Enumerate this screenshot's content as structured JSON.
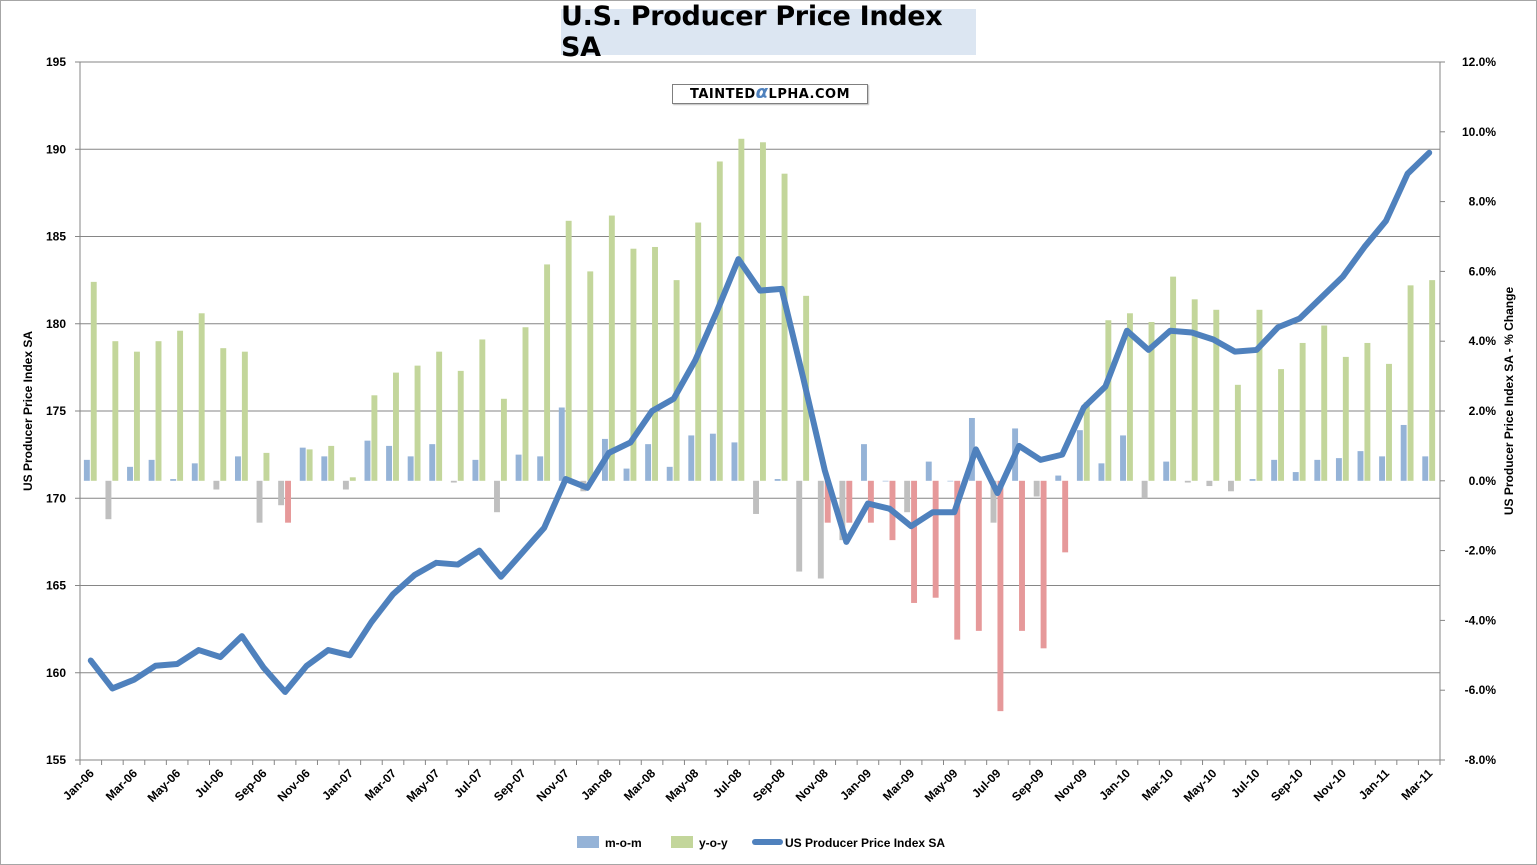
{
  "chart_data": {
    "type": "bar",
    "title": "U.S. Producer Price Index SA",
    "watermark": {
      "prefix": "TAINTED",
      "alpha": "α",
      "suffix": "LPHA.COM"
    },
    "categories": [
      "Jan-06",
      "Feb-06",
      "Mar-06",
      "Apr-06",
      "May-06",
      "Jun-06",
      "Jul-06",
      "Aug-06",
      "Sep-06",
      "Oct-06",
      "Nov-06",
      "Dec-06",
      "Jan-07",
      "Feb-07",
      "Mar-07",
      "Apr-07",
      "May-07",
      "Jun-07",
      "Jul-07",
      "Aug-07",
      "Sep-07",
      "Oct-07",
      "Nov-07",
      "Dec-07",
      "Jan-08",
      "Feb-08",
      "Mar-08",
      "Apr-08",
      "May-08",
      "Jun-08",
      "Jul-08",
      "Aug-08",
      "Sep-08",
      "Oct-08",
      "Nov-08",
      "Dec-08",
      "Jan-09",
      "Feb-09",
      "Mar-09",
      "Apr-09",
      "May-09",
      "Jun-09",
      "Jul-09",
      "Aug-09",
      "Sep-09",
      "Oct-09",
      "Nov-09",
      "Dec-09",
      "Jan-10",
      "Feb-10",
      "Mar-10",
      "Apr-10",
      "May-10",
      "Jun-10",
      "Jul-10",
      "Aug-10",
      "Sep-10",
      "Oct-10",
      "Nov-10",
      "Dec-10",
      "Jan-11",
      "Feb-11",
      "Mar-11"
    ],
    "x_tick_labels": [
      "Jan-06",
      "Mar-06",
      "May-06",
      "Jul-06",
      "Sep-06",
      "Nov-06",
      "Jan-07",
      "Mar-07",
      "May-07",
      "Jul-07",
      "Sep-07",
      "Nov-07",
      "Jan-08",
      "Mar-08",
      "May-08",
      "Jul-08",
      "Sep-08",
      "Nov-08",
      "Jan-09",
      "Mar-09",
      "May-09",
      "Jul-09",
      "Sep-09",
      "Nov-09",
      "Jan-10",
      "Mar-10",
      "May-10",
      "Jul-10",
      "Sep-10",
      "Nov-10",
      "Jan-11",
      "Mar-11"
    ],
    "series": [
      {
        "name": "m-o-m",
        "axis": "right",
        "color": "#95b3d7",
        "negative_color": "#bfbfbf",
        "values": [
          0.6,
          -1.1,
          0.4,
          0.6,
          0.05,
          0.5,
          -0.25,
          0.7,
          -1.2,
          -0.7,
          0.95,
          0.7,
          -0.25,
          1.15,
          1.0,
          0.7,
          1.05,
          -0.05,
          0.6,
          -0.9,
          0.75,
          0.7,
          2.1,
          -0.3,
          1.2,
          0.35,
          1.05,
          0.4,
          1.3,
          1.35,
          1.1,
          -0.95,
          0.05,
          -2.6,
          -2.8,
          -1.7,
          1.05,
          0.0,
          -0.9,
          0.55,
          0.0,
          1.8,
          -1.2,
          1.5,
          -0.45,
          0.15,
          1.45,
          0.5,
          1.3,
          -0.5,
          0.55,
          -0.05,
          -0.15,
          -0.3,
          0.05,
          0.6,
          0.25,
          0.6,
          0.65,
          0.85,
          0.7,
          1.6,
          0.7
        ]
      },
      {
        "name": "y-o-y",
        "axis": "right",
        "color": "#c3d69b",
        "negative_color": "#e6999a",
        "values": [
          5.7,
          4.0,
          3.7,
          4.0,
          4.3,
          4.8,
          3.8,
          3.7,
          0.8,
          -1.2,
          0.9,
          1.0,
          0.1,
          2.45,
          3.1,
          3.3,
          3.7,
          3.15,
          4.05,
          2.35,
          4.4,
          6.2,
          7.45,
          6.0,
          7.6,
          6.65,
          6.7,
          5.75,
          7.4,
          9.15,
          9.8,
          9.7,
          8.8,
          5.3,
          -1.2,
          -1.2,
          -1.2,
          -1.7,
          -3.5,
          -3.35,
          -4.55,
          -4.3,
          -6.6,
          -4.3,
          -4.8,
          -2.05,
          2.25,
          4.6,
          4.8,
          4.55,
          5.85,
          5.2,
          4.9,
          2.75,
          4.9,
          3.2,
          3.95,
          4.45,
          3.55,
          3.95,
          3.35,
          5.6,
          5.75
        ]
      },
      {
        "name": "US Producer Price Index SA",
        "axis": "left",
        "type": "line",
        "color": "#4f81bd",
        "values": [
          160.7,
          159.1,
          159.6,
          160.4,
          160.5,
          161.3,
          160.9,
          162.1,
          160.3,
          158.9,
          160.4,
          161.3,
          161.0,
          162.9,
          164.5,
          165.6,
          166.3,
          166.2,
          167.0,
          165.5,
          166.9,
          168.3,
          171.1,
          170.6,
          172.6,
          173.2,
          175.0,
          175.7,
          177.9,
          180.7,
          183.7,
          181.9,
          182.0,
          176.9,
          171.6,
          167.5,
          169.7,
          169.4,
          168.4,
          169.2,
          169.2,
          172.8,
          170.3,
          173.0,
          172.2,
          172.5,
          175.2,
          176.4,
          179.6,
          178.5,
          179.6,
          179.5,
          179.1,
          178.4,
          178.5,
          179.8,
          180.3,
          181.5,
          182.7,
          184.4,
          185.9,
          188.6,
          189.8
        ]
      }
    ],
    "left_axis": {
      "label": "US Producer Price Index SA",
      "ylim": [
        155,
        195
      ],
      "ticks": [
        "155",
        "160",
        "165",
        "170",
        "175",
        "180",
        "185",
        "190",
        "195"
      ]
    },
    "right_axis": {
      "label": "US Producer Price Index SA - % Change",
      "ylim": [
        -8,
        12
      ],
      "ticks": [
        "-8.0%",
        "-6.0%",
        "-4.0%",
        "-2.0%",
        "0.0%",
        "2.0%",
        "4.0%",
        "6.0%",
        "8.0%",
        "10.0%",
        "12.0%"
      ]
    },
    "grid": true,
    "legend_position": "bottom",
    "legend": [
      "m-o-m",
      "y-o-y",
      "US Producer Price Index SA"
    ]
  }
}
